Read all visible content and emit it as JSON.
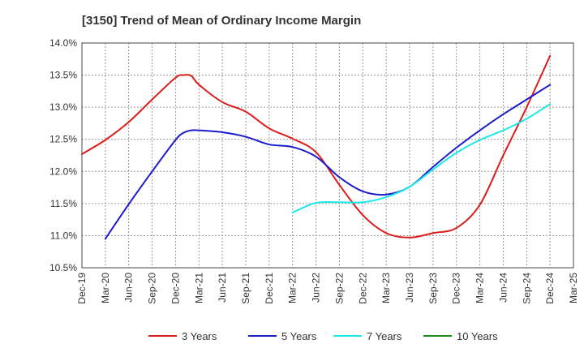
{
  "chart_data": {
    "type": "line",
    "title": "[3150]  Trend of Mean of Ordinary Income Margin",
    "xlabel": "",
    "ylabel": "",
    "x_ticks": [
      "Dec-19",
      "Mar-20",
      "Jun-20",
      "Sep-20",
      "Dec-20",
      "Mar-21",
      "Jun-21",
      "Sep-21",
      "Dec-21",
      "Mar-22",
      "Jun-22",
      "Sep-22",
      "Dec-22",
      "Mar-23",
      "Jun-23",
      "Sep-23",
      "Dec-23",
      "Mar-24",
      "Jun-24",
      "Sep-24",
      "Dec-24",
      "Mar-25"
    ],
    "y_ticks": [
      "10.5%",
      "11.0%",
      "11.5%",
      "12.0%",
      "12.5%",
      "13.0%",
      "13.5%",
      "14.0%"
    ],
    "ylim": [
      10.5,
      14.0
    ],
    "grid": true,
    "legend_position": "bottom",
    "series": [
      {
        "name": "3 Years",
        "color": "#dd1c1c",
        "x": [
          "Dec-19",
          "Mar-20",
          "Jun-20",
          "Sep-20",
          "Dec-20",
          "Jan-21",
          "Feb-21",
          "Mar-21",
          "Jun-21",
          "Sep-21",
          "Dec-21",
          "Mar-22",
          "Jun-22",
          "Sep-22",
          "Dec-22",
          "Mar-23",
          "Jun-23",
          "Sep-23",
          "Dec-23",
          "Mar-24",
          "Jun-24",
          "Sep-24",
          "Dec-24"
        ],
        "values": [
          12.27,
          12.49,
          12.77,
          13.12,
          13.46,
          13.5,
          13.49,
          13.35,
          13.08,
          12.93,
          12.67,
          12.51,
          12.3,
          11.79,
          11.32,
          11.04,
          10.97,
          11.04,
          11.12,
          11.48,
          12.25,
          13.0,
          13.8
        ]
      },
      {
        "name": "5 Years",
        "color": "#1c1ccc",
        "x": [
          "Mar-20",
          "Jun-20",
          "Sep-20",
          "Dec-20",
          "Jan-21",
          "Feb-21",
          "Mar-21",
          "Jun-21",
          "Sep-21",
          "Dec-21",
          "Mar-22",
          "Jun-22",
          "Sep-22",
          "Dec-22",
          "Mar-23",
          "Jun-23",
          "Sep-23",
          "Dec-23",
          "Mar-24",
          "Jun-24",
          "Sep-24",
          "Dec-24"
        ],
        "values": [
          10.95,
          11.49,
          12.0,
          12.49,
          12.6,
          12.64,
          12.64,
          12.61,
          12.54,
          12.42,
          12.38,
          12.23,
          11.91,
          11.69,
          11.64,
          11.76,
          12.07,
          12.37,
          12.64,
          12.89,
          13.12,
          13.35
        ]
      },
      {
        "name": "7 Years",
        "color": "#1ce8e8",
        "x": [
          "Mar-22",
          "Jun-22",
          "Sep-22",
          "Dec-22",
          "Mar-23",
          "Jun-23",
          "Sep-23",
          "Dec-23",
          "Mar-24",
          "Jun-24",
          "Sep-24",
          "Dec-24"
        ],
        "values": [
          11.36,
          11.51,
          11.52,
          11.52,
          11.6,
          11.76,
          12.03,
          12.29,
          12.49,
          12.64,
          12.82,
          13.05
        ]
      },
      {
        "name": "10 Years",
        "color": "#1c8c1c",
        "x": [],
        "values": []
      }
    ]
  }
}
